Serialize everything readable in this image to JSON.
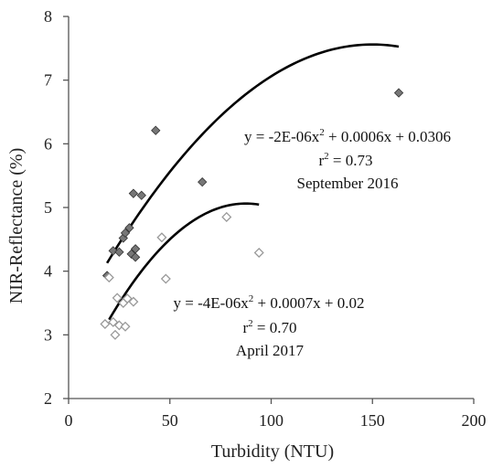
{
  "chart_data": {
    "type": "scatter",
    "xlabel": "Turbidity (NTU)",
    "ylabel": "NIR-Reflectance (%)",
    "xlim": [
      0,
      200
    ],
    "ylim": [
      2,
      8
    ],
    "xticks": [
      0,
      50,
      100,
      150,
      200
    ],
    "yticks": [
      2,
      3,
      4,
      5,
      6,
      7,
      8
    ],
    "grid": false,
    "series": [
      {
        "name": "September 2016",
        "marker": "diamond-filled",
        "color": "#777777",
        "points": [
          {
            "x": 19,
            "y": 3.93
          },
          {
            "x": 22,
            "y": 4.32
          },
          {
            "x": 25,
            "y": 4.3
          },
          {
            "x": 27,
            "y": 4.52
          },
          {
            "x": 28,
            "y": 4.6
          },
          {
            "x": 30,
            "y": 4.68
          },
          {
            "x": 31,
            "y": 4.27
          },
          {
            "x": 32,
            "y": 5.22
          },
          {
            "x": 33,
            "y": 4.35
          },
          {
            "x": 33,
            "y": 4.22
          },
          {
            "x": 36,
            "y": 5.19
          },
          {
            "x": 43,
            "y": 6.21
          },
          {
            "x": 66,
            "y": 5.4
          },
          {
            "x": 163,
            "y": 6.8
          }
        ],
        "fit": {
          "a": -2e-06,
          "b": 0.0006,
          "c": 0.0306,
          "x_range": [
            19,
            163
          ]
        },
        "annotation": {
          "equation": "y = -2E-06x",
          "equation_tail": " + 0.0006x + 0.0306",
          "r2_prefix": "r",
          "r2_value": " = 0.73",
          "label": "September 2016",
          "sup": "2"
        }
      },
      {
        "name": "April 2017",
        "marker": "diamond-open",
        "color": "#999999",
        "points": [
          {
            "x": 18,
            "y": 3.17
          },
          {
            "x": 20,
            "y": 3.9
          },
          {
            "x": 22,
            "y": 3.2
          },
          {
            "x": 23,
            "y": 3.0
          },
          {
            "x": 24,
            "y": 3.58
          },
          {
            "x": 25,
            "y": 3.15
          },
          {
            "x": 27,
            "y": 3.5
          },
          {
            "x": 28,
            "y": 3.13
          },
          {
            "x": 29,
            "y": 3.57
          },
          {
            "x": 32,
            "y": 3.52
          },
          {
            "x": 46,
            "y": 4.53
          },
          {
            "x": 48,
            "y": 3.88
          },
          {
            "x": 78,
            "y": 4.85
          },
          {
            "x": 94,
            "y": 4.29
          }
        ],
        "fit": {
          "a": -4e-06,
          "b": 0.0007,
          "c": 0.02,
          "x_range": [
            20,
            94
          ]
        },
        "annotation": {
          "equation": "y = -4E-06x",
          "equation_tail": " + 0.0007x + 0.02",
          "r2_prefix": "r",
          "r2_value": " = 0.70",
          "label": "April 2017",
          "sup": "2"
        }
      }
    ]
  }
}
